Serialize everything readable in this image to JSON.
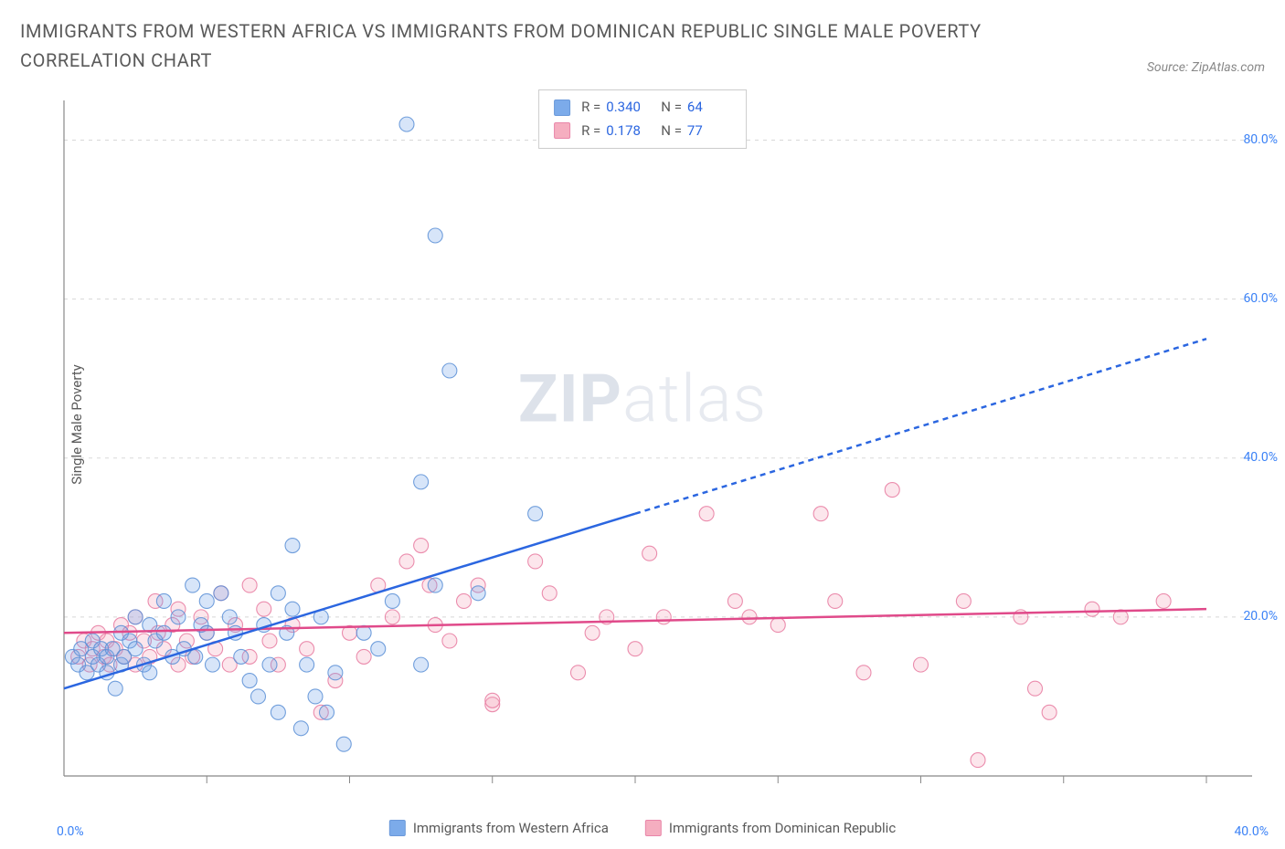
{
  "title": "IMMIGRANTS FROM WESTERN AFRICA VS IMMIGRANTS FROM DOMINICAN REPUBLIC SINGLE MALE POVERTY CORRELATION CHART",
  "source": "Source: ZipAtlas.com",
  "watermark_zip": "ZIP",
  "watermark_atlas": "atlas",
  "chart": {
    "type": "scatter",
    "background_color": "#ffffff",
    "grid_color": "#d8d8d8",
    "axis_line_color": "#888888",
    "ylabel": "Single Male Poverty",
    "ylabel_fontsize": 15,
    "ylabel_color": "#5a5a5a",
    "ylim": [
      0,
      85
    ],
    "ytick_values": [
      20,
      40,
      60,
      80
    ],
    "ytick_labels": [
      "20.0%",
      "40.0%",
      "60.0%",
      "80.0%"
    ],
    "ytick_color": "#3b82f6",
    "ytick_fontsize": 14,
    "xlim": [
      0,
      40
    ],
    "x_left_label": "0.0%",
    "x_right_label": "40.0%",
    "xtick_values": [
      5,
      10,
      15,
      20,
      25,
      30,
      35,
      40
    ],
    "xtick_color": "#3b82f6",
    "marker_radius": 8,
    "marker_fill_opacity": 0.28,
    "marker_stroke_width": 1.1,
    "series": [
      {
        "id": "western_africa",
        "label": "Immigrants from Western Africa",
        "color": "#6ea3e8",
        "stroke": "#5b8fd6",
        "R": "0.340",
        "N": "64",
        "trend": {
          "solid": {
            "x1": 0,
            "y1": 11,
            "x2": 20,
            "y2": 33
          },
          "dashed": {
            "x1": 20,
            "y1": 33,
            "x2": 40,
            "y2": 55
          },
          "color": "#2b66e0",
          "width": 2.5,
          "dash": "6,5"
        },
        "points": [
          [
            0.3,
            15
          ],
          [
            0.5,
            14
          ],
          [
            0.6,
            16
          ],
          [
            0.8,
            13
          ],
          [
            1.0,
            15
          ],
          [
            1.0,
            17
          ],
          [
            1.2,
            14
          ],
          [
            1.3,
            16
          ],
          [
            1.5,
            15
          ],
          [
            1.5,
            13
          ],
          [
            1.7,
            16
          ],
          [
            1.8,
            11
          ],
          [
            2.0,
            18
          ],
          [
            2.0,
            14
          ],
          [
            2.1,
            15
          ],
          [
            2.3,
            17
          ],
          [
            2.5,
            16
          ],
          [
            2.5,
            20
          ],
          [
            2.8,
            14
          ],
          [
            3.0,
            19
          ],
          [
            3.0,
            13
          ],
          [
            3.2,
            17
          ],
          [
            3.5,
            18
          ],
          [
            3.5,
            22
          ],
          [
            3.8,
            15
          ],
          [
            4.0,
            20
          ],
          [
            4.2,
            16
          ],
          [
            4.5,
            24
          ],
          [
            4.6,
            15
          ],
          [
            4.8,
            19
          ],
          [
            5.0,
            22
          ],
          [
            5.0,
            18
          ],
          [
            5.2,
            14
          ],
          [
            5.5,
            23
          ],
          [
            5.8,
            20
          ],
          [
            6.0,
            18
          ],
          [
            6.2,
            15
          ],
          [
            6.5,
            12
          ],
          [
            6.8,
            10
          ],
          [
            7.0,
            19
          ],
          [
            7.2,
            14
          ],
          [
            7.5,
            8
          ],
          [
            7.5,
            23
          ],
          [
            7.8,
            18
          ],
          [
            8.0,
            21
          ],
          [
            8.0,
            29
          ],
          [
            8.3,
            6
          ],
          [
            8.5,
            14
          ],
          [
            8.8,
            10
          ],
          [
            9.0,
            20
          ],
          [
            9.2,
            8
          ],
          [
            9.5,
            13
          ],
          [
            9.8,
            4
          ],
          [
            10.5,
            18
          ],
          [
            11.0,
            16
          ],
          [
            11.5,
            22
          ],
          [
            12.0,
            82
          ],
          [
            12.5,
            37
          ],
          [
            12.5,
            14
          ],
          [
            13.0,
            68
          ],
          [
            13.0,
            24
          ],
          [
            13.5,
            51
          ],
          [
            14.5,
            23
          ],
          [
            16.5,
            33
          ]
        ]
      },
      {
        "id": "dominican_republic",
        "label": "Immigrants from Dominican Republic",
        "color": "#f4a6ba",
        "stroke": "#e77aa0",
        "R": "0.178",
        "N": "77",
        "trend": {
          "solid": {
            "x1": 0,
            "y1": 18,
            "x2": 40,
            "y2": 21
          },
          "color": "#e04a8a",
          "width": 2.5
        },
        "points": [
          [
            0.5,
            15
          ],
          [
            0.7,
            17
          ],
          [
            0.9,
            14
          ],
          [
            1.0,
            16
          ],
          [
            1.2,
            18
          ],
          [
            1.4,
            15
          ],
          [
            1.5,
            17
          ],
          [
            1.6,
            14
          ],
          [
            1.8,
            16
          ],
          [
            2.0,
            19
          ],
          [
            2.1,
            15
          ],
          [
            2.3,
            18
          ],
          [
            2.5,
            14
          ],
          [
            2.5,
            20
          ],
          [
            2.8,
            17
          ],
          [
            3.0,
            15
          ],
          [
            3.2,
            22
          ],
          [
            3.3,
            18
          ],
          [
            3.5,
            16
          ],
          [
            3.8,
            19
          ],
          [
            4.0,
            14
          ],
          [
            4.0,
            21
          ],
          [
            4.3,
            17
          ],
          [
            4.5,
            15
          ],
          [
            4.8,
            20
          ],
          [
            5.0,
            18
          ],
          [
            5.3,
            16
          ],
          [
            5.5,
            23
          ],
          [
            5.8,
            14
          ],
          [
            6.0,
            19
          ],
          [
            6.5,
            15
          ],
          [
            6.5,
            24
          ],
          [
            7.0,
            21
          ],
          [
            7.2,
            17
          ],
          [
            7.5,
            14
          ],
          [
            8.0,
            19
          ],
          [
            8.5,
            16
          ],
          [
            9.0,
            8
          ],
          [
            9.5,
            12
          ],
          [
            10.0,
            18
          ],
          [
            10.5,
            15
          ],
          [
            11.0,
            24
          ],
          [
            11.5,
            20
          ],
          [
            12.0,
            27
          ],
          [
            12.5,
            29
          ],
          [
            12.8,
            24
          ],
          [
            13.0,
            19
          ],
          [
            13.5,
            17
          ],
          [
            14.0,
            22
          ],
          [
            14.5,
            24
          ],
          [
            15.0,
            9
          ],
          [
            15.0,
            9.5
          ],
          [
            16.5,
            27
          ],
          [
            17.0,
            23
          ],
          [
            18.0,
            13
          ],
          [
            18.5,
            18
          ],
          [
            19.0,
            20
          ],
          [
            20.0,
            16
          ],
          [
            20.5,
            28
          ],
          [
            21.0,
            20
          ],
          [
            22.5,
            33
          ],
          [
            23.5,
            22
          ],
          [
            24.0,
            20
          ],
          [
            25.0,
            19
          ],
          [
            26.5,
            33
          ],
          [
            27.0,
            22
          ],
          [
            28.0,
            13
          ],
          [
            29.0,
            36
          ],
          [
            30.0,
            14
          ],
          [
            31.5,
            22
          ],
          [
            32.0,
            2
          ],
          [
            33.5,
            20
          ],
          [
            34.0,
            11
          ],
          [
            34.5,
            8
          ],
          [
            36.0,
            21
          ],
          [
            37.0,
            20
          ],
          [
            38.5,
            22
          ]
        ]
      }
    ],
    "legend_box": {
      "border_color": "#cccccc",
      "bg_color": "#ffffff",
      "fontsize": 15,
      "label_color": "#5a5a5a",
      "value_color": "#2b66e0",
      "R_label": "R =",
      "N_label": "N ="
    },
    "bottom_legend": {
      "fontsize": 15,
      "color": "#5a5a5a"
    }
  }
}
